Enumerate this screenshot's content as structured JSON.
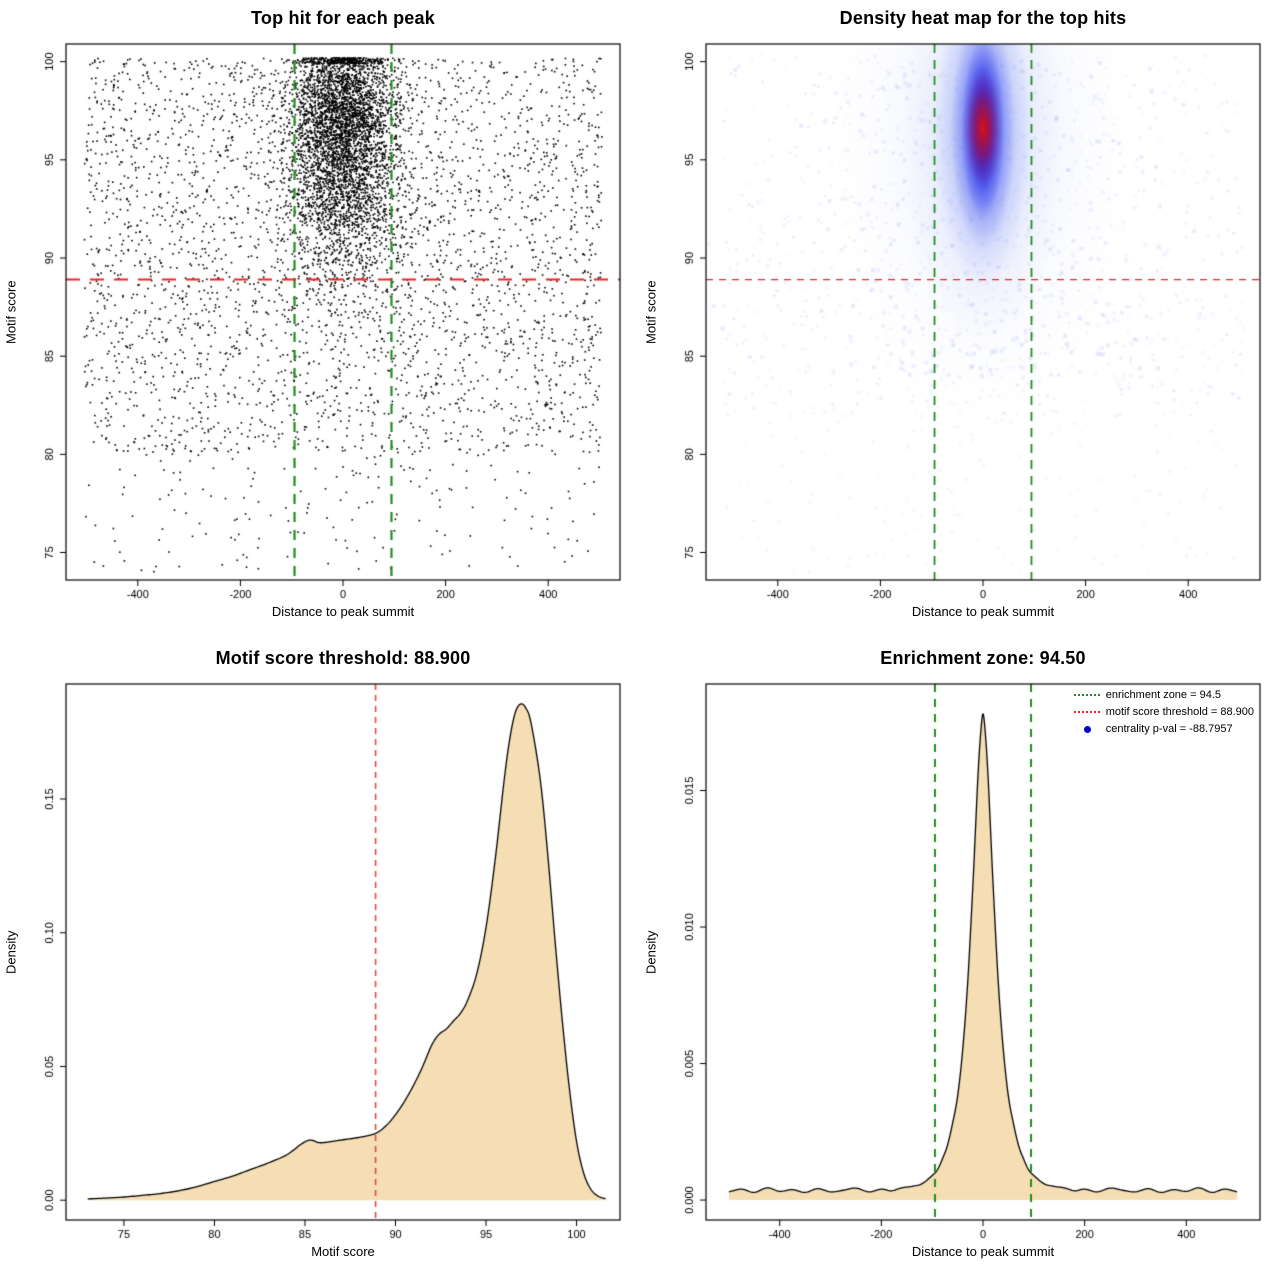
{
  "chart_data": [
    {
      "id": "top-hit-scatter",
      "type": "scatter",
      "title": "Top hit for each peak",
      "xlabel": "Distance to peak summit",
      "ylabel": "Motif score",
      "xlim": [
        -540,
        540
      ],
      "ylim": [
        73.6,
        100.9
      ],
      "xticks": [
        -400,
        -200,
        0,
        200,
        400
      ],
      "xtick_labels": [
        "-400",
        "-200",
        "0",
        "200",
        "400"
      ],
      "yticks": [
        75,
        80,
        85,
        90,
        95,
        100
      ],
      "ytick_labels": [
        "75",
        "80",
        "85",
        "90",
        "95",
        "100"
      ],
      "point_color": "#000000",
      "point_size": 1.6,
      "seed": 42,
      "components": [
        {
          "kind": "uniform",
          "n": 170,
          "x": [
            -505,
            505
          ],
          "y": [
            74,
            80
          ]
        },
        {
          "kind": "uniform",
          "n": 680,
          "x": [
            -505,
            505
          ],
          "y": [
            80,
            85
          ]
        },
        {
          "kind": "uniform",
          "n": 2500,
          "x": [
            -505,
            505
          ],
          "y": [
            85,
            100.2
          ]
        },
        {
          "kind": "gauss",
          "n": 3400,
          "cx": 0,
          "sx": 55,
          "cy": 95.6,
          "sy": 3.3,
          "xr": [
            -500,
            500
          ],
          "yr": [
            80,
            100.2
          ]
        },
        {
          "kind": "gauss",
          "n": 900,
          "cx": 0,
          "sx": 46,
          "cy": 97.6,
          "sy": 1.5,
          "xr": [
            -500,
            500
          ],
          "yr": [
            85,
            100.2
          ]
        },
        {
          "kind": "hband",
          "n": 300,
          "cx": 0,
          "sx": 44,
          "y": [
            99.9,
            100.2
          ]
        }
      ],
      "vlines": [
        {
          "x": -94.5,
          "color": "#228B22",
          "width": 2.2,
          "dash": [
            10,
            8
          ]
        },
        {
          "x": 94.5,
          "color": "#228B22",
          "width": 2.2,
          "dash": [
            10,
            8
          ]
        }
      ],
      "hlines": [
        {
          "y": 88.9,
          "color": "#ee2222",
          "width": 2,
          "dash": [
            14,
            10
          ]
        }
      ]
    },
    {
      "id": "density-heatmap",
      "type": "heatmap",
      "title": "Density heat map for the top hits",
      "xlabel": "Distance to peak summit",
      "ylabel": "Motif score",
      "xlim": [
        -540,
        540
      ],
      "ylim": [
        73.6,
        100.9
      ],
      "xticks": [
        -400,
        -200,
        0,
        200,
        400
      ],
      "xtick_labels": [
        "-400",
        "-200",
        "0",
        "200",
        "400"
      ],
      "yticks": [
        75,
        80,
        85,
        90,
        95,
        100
      ],
      "ytick_labels": [
        "75",
        "80",
        "85",
        "90",
        "95",
        "100"
      ],
      "seed": 7,
      "speckle_color": "#4a5cf0",
      "speckles": [
        {
          "n": 700,
          "x": [
            -510,
            510
          ],
          "y": [
            82,
            100.4
          ],
          "size": 3,
          "alpha": [
            0.03,
            0.1
          ]
        },
        {
          "n": 260,
          "x": [
            -510,
            510
          ],
          "y": [
            74,
            88
          ],
          "size": 3,
          "alpha": [
            0.02,
            0.07
          ]
        },
        {
          "n": 380,
          "cx": 0,
          "sx": 170,
          "y": [
            84,
            100.2
          ],
          "size": 4,
          "alpha": [
            0.05,
            0.13
          ]
        }
      ],
      "kernels": [
        {
          "cx": 0,
          "cy": 96.3,
          "sx": 110,
          "sy": 5.5,
          "color": "#cdd7fa",
          "alpha": 0.4
        },
        {
          "cx": 0,
          "cy": 96.4,
          "sx": 60,
          "sy": 4.2,
          "color": "#aab9f7",
          "alpha": 0.55
        },
        {
          "cx": 0,
          "cy": 96.5,
          "sx": 36,
          "sy": 3.1,
          "color": "#6074f2",
          "alpha": 0.75
        },
        {
          "cx": 0,
          "cy": 96.5,
          "sx": 24,
          "sy": 2.4,
          "color": "#2430ee",
          "alpha": 0.9
        },
        {
          "cx": 0,
          "cy": 96.6,
          "sx": 16,
          "sy": 1.8,
          "color": "#0a0ae0",
          "alpha": 1
        },
        {
          "cx": 0,
          "cy": 96.6,
          "sx": 15,
          "sy": 1.15,
          "color": "#dd1111",
          "alpha": 1
        }
      ],
      "vlines": [
        {
          "x": -94.5,
          "color": "#228B22",
          "width": 1.8,
          "dash": [
            9,
            7
          ]
        },
        {
          "x": 94.5,
          "color": "#228B22",
          "width": 1.8,
          "dash": [
            9,
            7
          ]
        }
      ],
      "hlines": [
        {
          "y": 88.9,
          "color": "#ee2222",
          "width": 1.4,
          "dash": [
            7,
            6
          ]
        }
      ]
    },
    {
      "id": "motif-score-density",
      "type": "density",
      "title": "Motif score threshold: 88.900",
      "xlabel": "Motif score",
      "ylabel": "Density",
      "xlim": [
        71.8,
        102.4
      ],
      "ylim": [
        -0.0074,
        0.193
      ],
      "xticks": [
        75,
        80,
        85,
        90,
        95,
        100
      ],
      "xtick_labels": [
        "75",
        "80",
        "85",
        "90",
        "95",
        "100"
      ],
      "yticks": [
        0,
        0.05,
        0.1,
        0.15
      ],
      "ytick_labels": [
        "0.00",
        "0.05",
        "0.10",
        "0.15"
      ],
      "fill": "#f5deb3",
      "stroke": "#000000",
      "curve": {
        "x": [
          73,
          74,
          75,
          76,
          77,
          78,
          79,
          80,
          81,
          82,
          83,
          84,
          84.8,
          85.3,
          85.8,
          86.5,
          87,
          88,
          88.9,
          89.5,
          90,
          90.5,
          91,
          91.5,
          92,
          92.4,
          92.8,
          93.2,
          93.6,
          94,
          94.5,
          95,
          95.5,
          96,
          96.3,
          96.6,
          96.9,
          97.2,
          97.5,
          98,
          98.4,
          98.8,
          99.2,
          99.6,
          100,
          100.4,
          100.8,
          101.2,
          101.6
        ],
        "y": [
          0.0005,
          0.0008,
          0.0012,
          0.0018,
          0.0025,
          0.0035,
          0.005,
          0.007,
          0.009,
          0.0115,
          0.014,
          0.017,
          0.021,
          0.0225,
          0.0215,
          0.022,
          0.0225,
          0.0235,
          0.025,
          0.028,
          0.032,
          0.037,
          0.043,
          0.05,
          0.058,
          0.062,
          0.064,
          0.067,
          0.07,
          0.075,
          0.085,
          0.102,
          0.127,
          0.157,
          0.172,
          0.182,
          0.1855,
          0.184,
          0.178,
          0.157,
          0.13,
          0.098,
          0.068,
          0.042,
          0.022,
          0.01,
          0.004,
          0.0015,
          0.0005
        ]
      },
      "vlines": [
        {
          "x": 88.9,
          "color": "#e04848",
          "width": 1.6,
          "dash": [
            6,
            5
          ]
        }
      ],
      "hlines": []
    },
    {
      "id": "distance-density",
      "type": "density",
      "title": "Enrichment zone: 94.50",
      "xlabel": "Distance to peak summit",
      "ylabel": "Density",
      "xlim": [
        -545,
        545
      ],
      "ylim": [
        -0.00073,
        0.0189
      ],
      "xticks": [
        -400,
        -200,
        0,
        200,
        400
      ],
      "xtick_labels": [
        "-400",
        "-200",
        "0",
        "200",
        "400"
      ],
      "yticks": [
        0,
        0.005,
        0.01,
        0.015
      ],
      "ytick_labels": [
        "0.000",
        "0.005",
        "0.010",
        "0.015"
      ],
      "fill": "#f5deb3",
      "stroke": "#000000",
      "curve": {
        "x": [
          -500,
          -475,
          -450,
          -425,
          -400,
          -375,
          -350,
          -325,
          -300,
          -275,
          -250,
          -225,
          -200,
          -180,
          -160,
          -140,
          -120,
          -100,
          -90,
          -80,
          -70,
          -60,
          -50,
          -40,
          -30,
          -20,
          -15,
          -10,
          -5,
          0,
          5,
          10,
          15,
          20,
          30,
          40,
          50,
          60,
          70,
          80,
          90,
          100,
          120,
          140,
          160,
          180,
          200,
          225,
          250,
          275,
          300,
          325,
          350,
          375,
          400,
          425,
          450,
          475,
          500
        ],
        "y": [
          0.0003,
          0.0004,
          0.00028,
          0.00045,
          0.00032,
          0.00038,
          0.00028,
          0.00042,
          0.0003,
          0.00036,
          0.00044,
          0.0003,
          0.0004,
          0.00034,
          0.00045,
          0.0005,
          0.0006,
          0.0009,
          0.0011,
          0.0015,
          0.002,
          0.0028,
          0.0038,
          0.0055,
          0.008,
          0.0115,
          0.0135,
          0.0155,
          0.017,
          0.0178,
          0.017,
          0.0155,
          0.0135,
          0.0115,
          0.008,
          0.0055,
          0.0038,
          0.0028,
          0.002,
          0.0015,
          0.0011,
          0.0009,
          0.0006,
          0.0005,
          0.00045,
          0.00034,
          0.0004,
          0.0003,
          0.00044,
          0.00036,
          0.0003,
          0.00042,
          0.00028,
          0.00038,
          0.00032,
          0.00045,
          0.00028,
          0.0004,
          0.0003
        ]
      },
      "vlines": [
        {
          "x": -94.5,
          "color": "#228B22",
          "width": 2,
          "dash": [
            8,
            7
          ]
        },
        {
          "x": 94.5,
          "color": "#228B22",
          "width": 2,
          "dash": [
            8,
            7
          ]
        }
      ],
      "hlines": [],
      "legend": {
        "items": [
          {
            "label": "enrichment zone = 94.5",
            "swatch": "line",
            "color": "#228B22"
          },
          {
            "label": "motif score threshold = 88.900",
            "swatch": "line",
            "color": "#ee2222"
          },
          {
            "label": "centrality p-val = -88.7957",
            "swatch": "dot",
            "color": "#0000cd"
          }
        ]
      }
    }
  ]
}
